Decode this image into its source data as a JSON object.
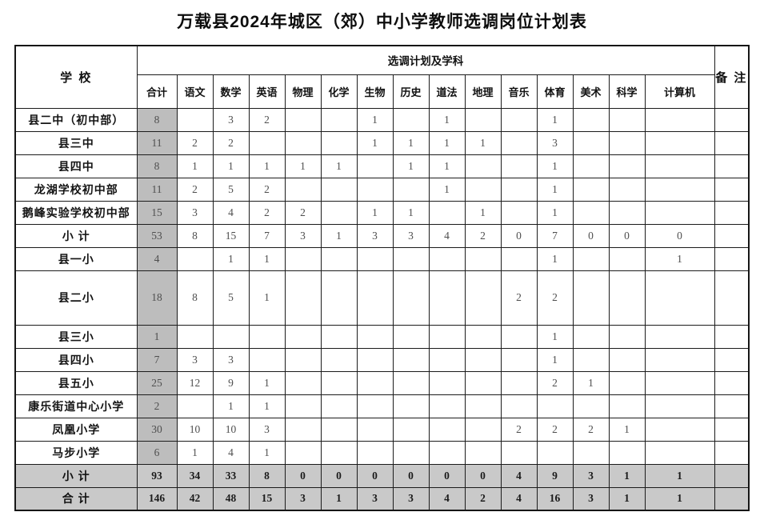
{
  "title": "万载县2024年城区（郊）中小学教师选调岗位计划表",
  "colors": {
    "total_column_gray": "#bdbdbd",
    "total_row_gray": "#c9c9c9",
    "border_black": "#1c1c1c"
  },
  "table": {
    "header": {
      "school": "学  校",
      "plan_group": "选调计划及学科",
      "remark": "备  注",
      "subjects": [
        "合计",
        "语文",
        "数学",
        "英语",
        "物理",
        "化学",
        "生物",
        "历史",
        "道法",
        "地理",
        "音乐",
        "体育",
        "美术",
        "科学",
        "计算机"
      ]
    },
    "rows": [
      {
        "school": "县二中（初中部）",
        "type": "normal",
        "values": [
          "8",
          "",
          "3",
          "2",
          "",
          "",
          "1",
          "",
          "1",
          "",
          "",
          "1",
          "",
          "",
          ""
        ],
        "remark": ""
      },
      {
        "school": "县三中",
        "type": "normal",
        "values": [
          "11",
          "2",
          "2",
          "",
          "",
          "",
          "1",
          "1",
          "1",
          "1",
          "",
          "3",
          "",
          "",
          ""
        ],
        "remark": ""
      },
      {
        "school": "县四中",
        "type": "normal",
        "values": [
          "8",
          "1",
          "1",
          "1",
          "1",
          "1",
          "",
          "1",
          "1",
          "",
          "",
          "1",
          "",
          "",
          ""
        ],
        "remark": ""
      },
      {
        "school": "龙湖学校初中部",
        "type": "normal",
        "values": [
          "11",
          "2",
          "5",
          "2",
          "",
          "",
          "",
          "",
          "1",
          "",
          "",
          "1",
          "",
          "",
          ""
        ],
        "remark": ""
      },
      {
        "school": "鹅峰实验学校初中部",
        "type": "normal",
        "values": [
          "15",
          "3",
          "4",
          "2",
          "2",
          "",
          "1",
          "1",
          "",
          "1",
          "",
          "1",
          "",
          "",
          ""
        ],
        "remark": ""
      },
      {
        "school": "小  计",
        "type": "subtotal",
        "values": [
          "53",
          "8",
          "15",
          "7",
          "3",
          "1",
          "3",
          "3",
          "4",
          "2",
          "0",
          "7",
          "0",
          "0",
          "0"
        ],
        "remark": ""
      },
      {
        "school": "县一小",
        "type": "normal",
        "values": [
          "4",
          "",
          "1",
          "1",
          "",
          "",
          "",
          "",
          "",
          "",
          "",
          "1",
          "",
          "",
          "1"
        ],
        "remark": ""
      },
      {
        "school": "县二小",
        "type": "tall",
        "values": [
          "18",
          "8",
          "5",
          "1",
          "",
          "",
          "",
          "",
          "",
          "",
          "2",
          "2",
          "",
          "",
          ""
        ],
        "remark": ""
      },
      {
        "school": "县三小",
        "type": "normal",
        "values": [
          "1",
          "",
          "",
          "",
          "",
          "",
          "",
          "",
          "",
          "",
          "",
          "1",
          "",
          "",
          ""
        ],
        "remark": ""
      },
      {
        "school": "县四小",
        "type": "normal",
        "values": [
          "7",
          "3",
          "3",
          "",
          "",
          "",
          "",
          "",
          "",
          "",
          "",
          "1",
          "",
          "",
          ""
        ],
        "remark": ""
      },
      {
        "school": "县五小",
        "type": "normal",
        "values": [
          "25",
          "12",
          "9",
          "1",
          "",
          "",
          "",
          "",
          "",
          "",
          "",
          "2",
          "1",
          "",
          ""
        ],
        "remark": ""
      },
      {
        "school": "康乐街道中心小学",
        "type": "normal",
        "values": [
          "2",
          "",
          "1",
          "1",
          "",
          "",
          "",
          "",
          "",
          "",
          "",
          "",
          "",
          "",
          ""
        ],
        "remark": ""
      },
      {
        "school": "凤凰小学",
        "type": "normal",
        "values": [
          "30",
          "10",
          "10",
          "3",
          "",
          "",
          "",
          "",
          "",
          "",
          "2",
          "2",
          "2",
          "1",
          ""
        ],
        "remark": ""
      },
      {
        "school": "马步小学",
        "type": "normal",
        "values": [
          "6",
          "1",
          "4",
          "1",
          "",
          "",
          "",
          "",
          "",
          "",
          "",
          "",
          "",
          "",
          ""
        ],
        "remark": ""
      },
      {
        "school": "小  计",
        "type": "total",
        "values": [
          "93",
          "34",
          "33",
          "8",
          "0",
          "0",
          "0",
          "0",
          "0",
          "0",
          "4",
          "9",
          "3",
          "1",
          "1"
        ],
        "remark": ""
      },
      {
        "school": "合  计",
        "type": "total",
        "values": [
          "146",
          "42",
          "48",
          "15",
          "3",
          "1",
          "3",
          "3",
          "4",
          "2",
          "4",
          "16",
          "3",
          "1",
          "1"
        ],
        "remark": ""
      }
    ]
  }
}
